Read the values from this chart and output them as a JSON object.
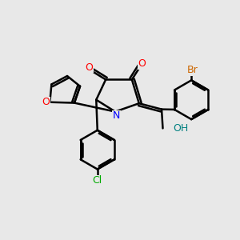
{
  "background_color": "#e8e8e8",
  "bond_color": "#000000",
  "bond_width": 1.8,
  "atom_colors": {
    "O": "#ff0000",
    "N": "#0000ff",
    "Br": "#cc6600",
    "Cl": "#00aa00",
    "H": "#008080"
  },
  "font_size_atoms": 9
}
